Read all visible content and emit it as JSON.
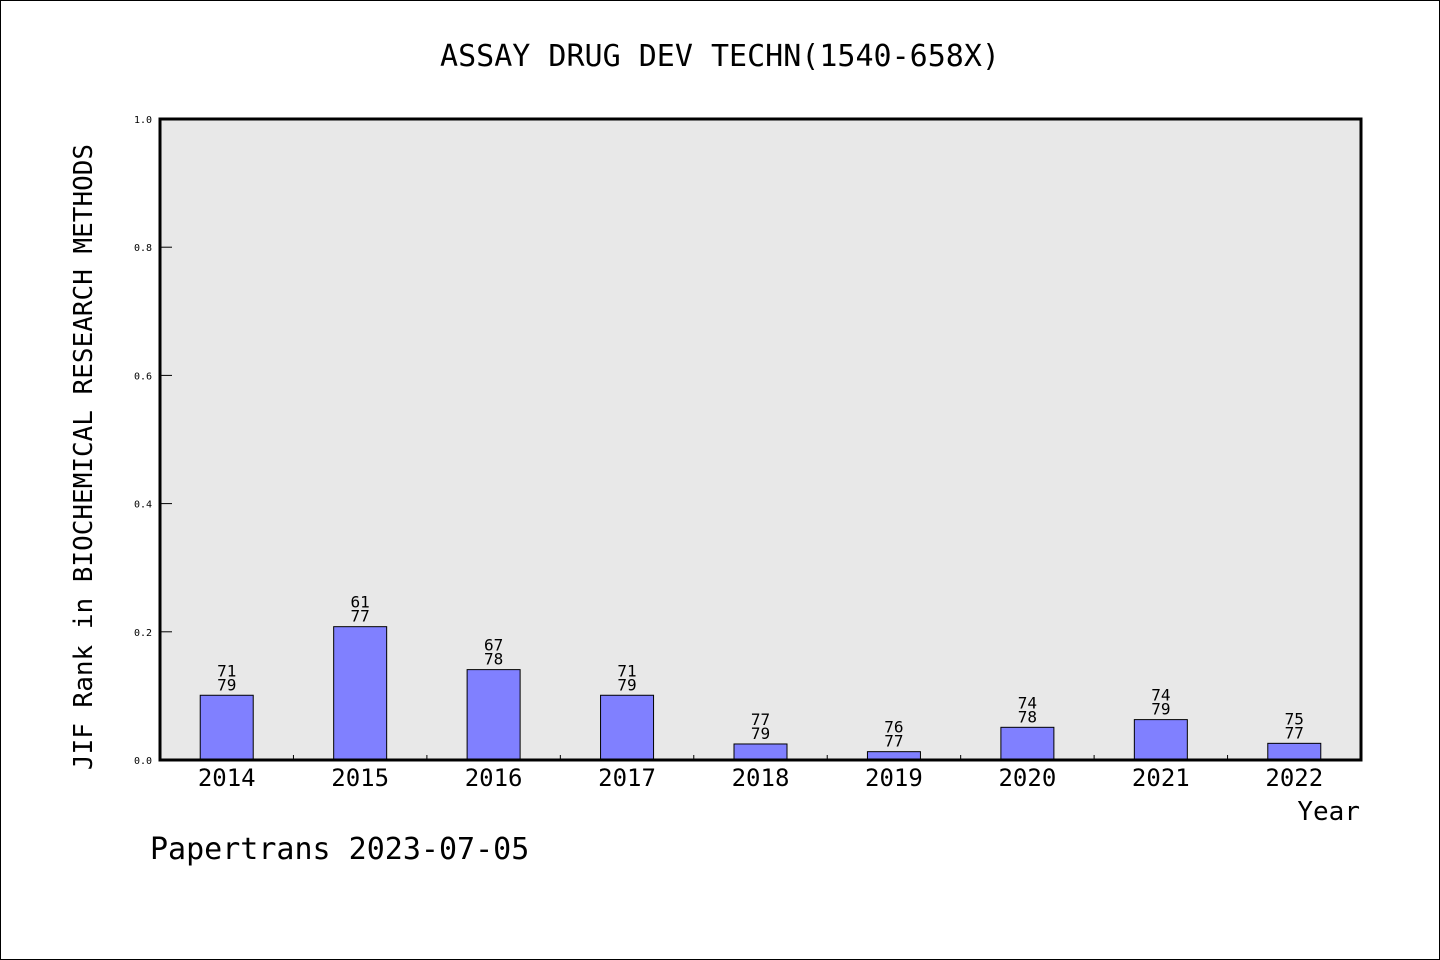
{
  "chart_data": {
    "type": "bar",
    "title": "ASSAY DRUG DEV TECHN(1540-658X)",
    "xlabel": "Year",
    "ylabel": "JIF Rank in BIOCHEMICAL RESEARCH METHODS",
    "ylim": [
      0,
      1.0
    ],
    "yticks": [
      "0.0",
      "0.2",
      "0.4",
      "0.6",
      "0.8",
      "1.0"
    ],
    "categories": [
      "2014",
      "2015",
      "2016",
      "2017",
      "2018",
      "2019",
      "2020",
      "2021",
      "2022"
    ],
    "values": [
      0.101,
      0.208,
      0.141,
      0.101,
      0.025,
      0.013,
      0.051,
      0.063,
      0.026
    ],
    "rank_labels": [
      {
        "rank": "71",
        "total": "79"
      },
      {
        "rank": "61",
        "total": "77"
      },
      {
        "rank": "67",
        "total": "78"
      },
      {
        "rank": "71",
        "total": "79"
      },
      {
        "rank": "77",
        "total": "79"
      },
      {
        "rank": "76",
        "total": "77"
      },
      {
        "rank": "74",
        "total": "78"
      },
      {
        "rank": "74",
        "total": "79"
      },
      {
        "rank": "75",
        "total": "77"
      }
    ],
    "grid": false,
    "bar_color": "#8080ff",
    "plot_background": "#e8e8e8"
  },
  "footer": {
    "text": "Papertrans 2023-07-05"
  }
}
